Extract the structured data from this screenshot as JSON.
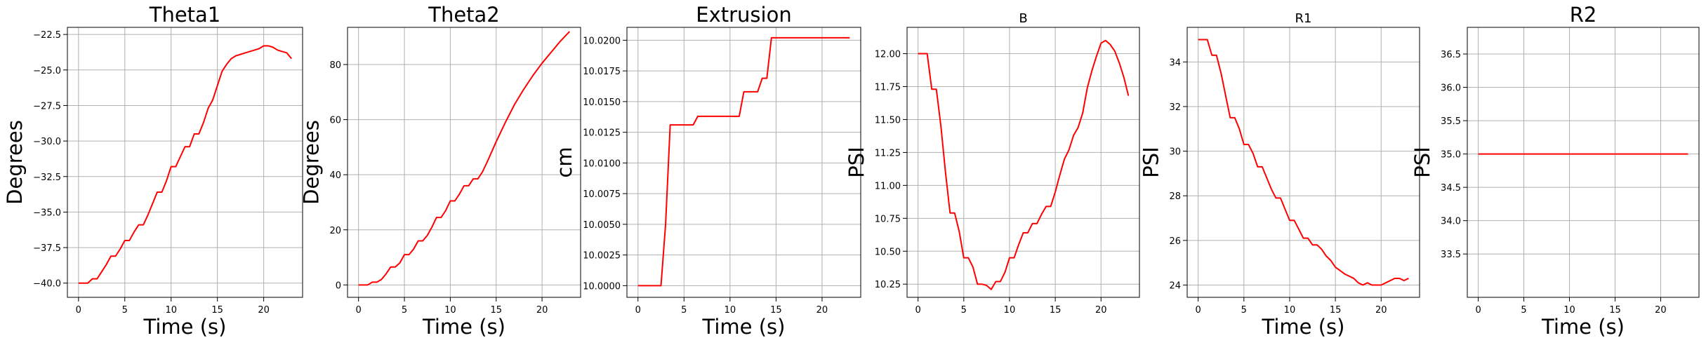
{
  "chart_data": [
    {
      "type": "line",
      "title": "Theta1",
      "xlabel": "Time (s)",
      "ylabel": "Degrees",
      "xlim": [
        -1.2,
        24.2
      ],
      "ylim": [
        -41.0,
        -22.0
      ],
      "xticks": [
        0,
        5,
        10,
        15,
        20
      ],
      "xtick_labels": [
        "0",
        "5",
        "10",
        "15",
        "20"
      ],
      "yticks": [
        -40.0,
        -37.5,
        -35.0,
        -32.5,
        -30.0,
        -27.5,
        -25.0,
        -22.5
      ],
      "ytick_labels": [
        "−40.0",
        "−37.5",
        "−35.0",
        "−32.5",
        "−30.0",
        "−27.5",
        "−25.0",
        "−22.5"
      ],
      "grid": true,
      "color": "#ff0000",
      "x": [
        0,
        1,
        1.5,
        2,
        2.5,
        3,
        3.5,
        4,
        4.5,
        5,
        5.5,
        6,
        6.5,
        7,
        7.5,
        8,
        8.5,
        9,
        9.5,
        10,
        10.5,
        11,
        11.5,
        12,
        12.5,
        13,
        13.5,
        14,
        14.5,
        15,
        15.5,
        16,
        16.5,
        17,
        17.5,
        18,
        18.5,
        19,
        19.5,
        20,
        20.5,
        21,
        21.5,
        22,
        22.5,
        23
      ],
      "y": [
        -40.0,
        -40.0,
        -39.7,
        -39.7,
        -39.2,
        -38.7,
        -38.1,
        -38.1,
        -37.6,
        -37.0,
        -37.0,
        -36.4,
        -35.9,
        -35.9,
        -35.2,
        -34.4,
        -33.6,
        -33.6,
        -32.8,
        -31.8,
        -31.8,
        -31.1,
        -30.4,
        -30.4,
        -29.5,
        -29.5,
        -28.7,
        -27.7,
        -27.1,
        -26.1,
        -25.1,
        -24.6,
        -24.2,
        -24.0,
        -23.9,
        -23.8,
        -23.7,
        -23.6,
        -23.5,
        -23.3,
        -23.3,
        -23.4,
        -23.6,
        -23.7,
        -23.8,
        -24.2
      ]
    },
    {
      "type": "line",
      "title": "Theta2",
      "xlabel": "Time (s)",
      "ylabel": "Degrees",
      "xlim": [
        -1.2,
        24.2
      ],
      "ylim": [
        -4.5,
        93.5
      ],
      "xticks": [
        0,
        5,
        10,
        15,
        20
      ],
      "xtick_labels": [
        "0",
        "5",
        "10",
        "15",
        "20"
      ],
      "yticks": [
        0,
        20,
        40,
        60,
        80
      ],
      "ytick_labels": [
        "0",
        "20",
        "40",
        "60",
        "80"
      ],
      "grid": true,
      "color": "#ff0000",
      "x": [
        0,
        0.5,
        1,
        1.5,
        2,
        2.5,
        3,
        3.5,
        4,
        4.5,
        5,
        5.5,
        6,
        6.5,
        7,
        7.5,
        8,
        8.5,
        9,
        9.5,
        10,
        10.5,
        11,
        11.5,
        12,
        12.5,
        13,
        13.5,
        14,
        15,
        16,
        17,
        18,
        19,
        20,
        21,
        22,
        23
      ],
      "y": [
        0,
        0,
        0,
        1,
        1,
        2,
        4,
        6.5,
        6.5,
        8,
        11,
        11,
        13,
        16,
        16,
        18,
        21,
        24.5,
        24.5,
        27,
        30.5,
        30.5,
        33,
        36,
        36,
        38.5,
        38.5,
        41,
        44.5,
        52,
        59,
        65.5,
        71,
        76,
        80.5,
        84.5,
        88.5,
        92
      ]
    },
    {
      "type": "line",
      "title": "Extrusion",
      "xlabel": "Time (s)",
      "ylabel": "cm",
      "xlim": [
        -1.2,
        24.2
      ],
      "ylim": [
        9.99905,
        10.02105
      ],
      "xticks": [
        0,
        5,
        10,
        15,
        20
      ],
      "xtick_labels": [
        "0",
        "5",
        "10",
        "15",
        "20"
      ],
      "yticks": [
        10.0,
        10.0025,
        10.005,
        10.0075,
        10.01,
        10.0125,
        10.015,
        10.0175,
        10.02
      ],
      "ytick_labels": [
        "10.0000",
        "10.0025",
        "10.0050",
        "10.0075",
        "10.0100",
        "10.0125",
        "10.0150",
        "10.0175",
        "10.0200"
      ],
      "grid": true,
      "color": "#ff0000",
      "x": [
        0,
        1,
        2,
        2.5,
        3,
        3.5,
        4,
        5,
        6,
        6.5,
        7,
        8,
        9,
        10,
        11,
        11.5,
        12,
        13,
        13.5,
        14,
        14.5,
        15,
        16,
        17,
        18,
        19,
        20,
        21,
        22,
        23
      ],
      "y": [
        10.0,
        10.0,
        10.0,
        10.0,
        10.005,
        10.0131,
        10.0131,
        10.0131,
        10.0131,
        10.0138,
        10.0138,
        10.0138,
        10.0138,
        10.0138,
        10.0138,
        10.0158,
        10.0158,
        10.0158,
        10.0169,
        10.0169,
        10.0202,
        10.0202,
        10.0202,
        10.0202,
        10.0202,
        10.0202,
        10.0202,
        10.0202,
        10.0202,
        10.0202
      ]
    },
    {
      "type": "line",
      "title": "B",
      "xlabel": "",
      "ylabel": "PSI",
      "xlim": [
        -1.2,
        24.2
      ],
      "ylim": [
        10.15,
        12.2
      ],
      "xticks": [
        0,
        5,
        10,
        15,
        20
      ],
      "xtick_labels": [
        "0",
        "5",
        "10",
        "15",
        "20"
      ],
      "yticks": [
        10.25,
        10.5,
        10.75,
        11.0,
        11.25,
        11.5,
        11.75,
        12.0
      ],
      "ytick_labels": [
        "10.25",
        "10.50",
        "10.75",
        "11.00",
        "11.25",
        "11.50",
        "11.75",
        "12.00"
      ],
      "grid": true,
      "color": "#ff0000",
      "x": [
        0,
        1,
        1.5,
        2,
        2.5,
        3,
        3.5,
        4,
        4.5,
        5,
        5.5,
        6,
        6.5,
        7,
        7.5,
        8,
        8.5,
        9,
        9.5,
        10,
        10.5,
        11,
        11.5,
        12,
        12.5,
        13,
        13.5,
        14,
        14.5,
        15,
        15.5,
        16,
        16.5,
        17,
        17.5,
        18,
        18.5,
        19,
        19.5,
        20,
        20.5,
        21,
        21.5,
        22,
        22.5,
        23
      ],
      "y": [
        12.0,
        12.0,
        11.73,
        11.73,
        11.45,
        11.1,
        10.79,
        10.79,
        10.65,
        10.45,
        10.45,
        10.38,
        10.25,
        10.25,
        10.24,
        10.21,
        10.27,
        10.27,
        10.34,
        10.45,
        10.45,
        10.55,
        10.64,
        10.64,
        10.71,
        10.71,
        10.78,
        10.84,
        10.84,
        10.95,
        11.08,
        11.2,
        11.27,
        11.38,
        11.44,
        11.55,
        11.74,
        11.87,
        11.98,
        12.08,
        12.1,
        12.07,
        12.02,
        11.93,
        11.82,
        11.68
      ]
    },
    {
      "type": "line",
      "title": "R1",
      "xlabel": "Time (s)",
      "ylabel": "PSI",
      "xlim": [
        -1.2,
        24.2
      ],
      "ylim": [
        23.45,
        35.55
      ],
      "xticks": [
        0,
        5,
        10,
        15,
        20
      ],
      "xtick_labels": [
        "0",
        "5",
        "10",
        "15",
        "20"
      ],
      "yticks": [
        24,
        26,
        28,
        30,
        32,
        34
      ],
      "ytick_labels": [
        "24",
        "26",
        "28",
        "30",
        "32",
        "34"
      ],
      "grid": true,
      "color": "#ff0000",
      "x": [
        0,
        1,
        1.5,
        2,
        2.5,
        3,
        3.5,
        4,
        4.5,
        5,
        5.5,
        6,
        6.5,
        7,
        7.5,
        8,
        8.5,
        9,
        9.5,
        10,
        10.5,
        11,
        11.5,
        12,
        12.5,
        13,
        13.5,
        14,
        14.5,
        15,
        16,
        17,
        17.5,
        18,
        18.5,
        19,
        19.5,
        20,
        20.5,
        21,
        21.5,
        22,
        22.5,
        23
      ],
      "y": [
        35.0,
        35.0,
        34.3,
        34.3,
        33.5,
        32.5,
        31.5,
        31.5,
        31.0,
        30.3,
        30.3,
        29.9,
        29.3,
        29.3,
        28.8,
        28.3,
        27.9,
        27.9,
        27.4,
        26.9,
        26.9,
        26.5,
        26.1,
        26.1,
        25.8,
        25.8,
        25.6,
        25.3,
        25.1,
        24.8,
        24.5,
        24.3,
        24.1,
        24.0,
        24.1,
        24.0,
        24.0,
        24.0,
        24.1,
        24.2,
        24.3,
        24.3,
        24.2,
        24.3
      ]
    },
    {
      "type": "line",
      "title": "R2",
      "xlabel": "Time (s)",
      "ylabel": "PSI",
      "xlim": [
        -1.2,
        24.2
      ],
      "ylim": [
        32.85,
        36.9
      ],
      "xticks": [
        0,
        5,
        10,
        15,
        20
      ],
      "xtick_labels": [
        "0",
        "5",
        "10",
        "15",
        "20"
      ],
      "yticks": [
        33.5,
        34.0,
        34.5,
        35.0,
        35.5,
        36.0,
        36.5
      ],
      "ytick_labels": [
        "33.5",
        "34.0",
        "34.5",
        "35.0",
        "35.5",
        "36.0",
        "36.5"
      ],
      "grid": true,
      "color": "#ff0000",
      "x": [
        0,
        23
      ],
      "y": [
        35.0,
        35.0
      ]
    }
  ]
}
